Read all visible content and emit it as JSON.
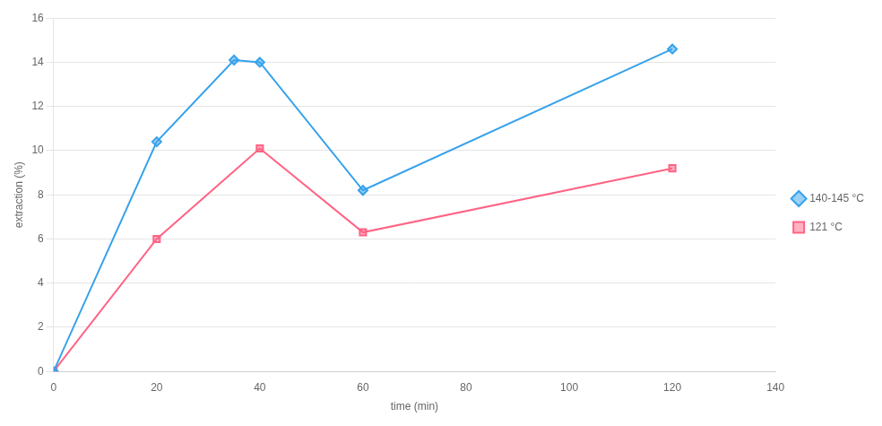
{
  "chart_data": {
    "type": "line",
    "xlabel": "time (min)",
    "ylabel": "extraction (%)",
    "series": [
      {
        "name": "140-145 °C",
        "x": [
          0,
          20,
          35,
          40,
          60,
          120
        ],
        "values": [
          0,
          10.4,
          14.1,
          14.0,
          8.2,
          14.6
        ],
        "marker": "diamond"
      },
      {
        "name": "121 °C",
        "x": [
          0,
          20,
          40,
          60,
          120
        ],
        "values": [
          0,
          6.0,
          10.1,
          6.3,
          9.2
        ],
        "marker": "square"
      }
    ],
    "xlim": [
      0,
      140
    ],
    "xticks": [
      0,
      20,
      40,
      60,
      80,
      100,
      120,
      140
    ],
    "ylim": [
      0,
      16
    ],
    "yticks": [
      0,
      2,
      4,
      6,
      8,
      10,
      12,
      14,
      16
    ],
    "grid": "y",
    "legend": "right"
  }
}
